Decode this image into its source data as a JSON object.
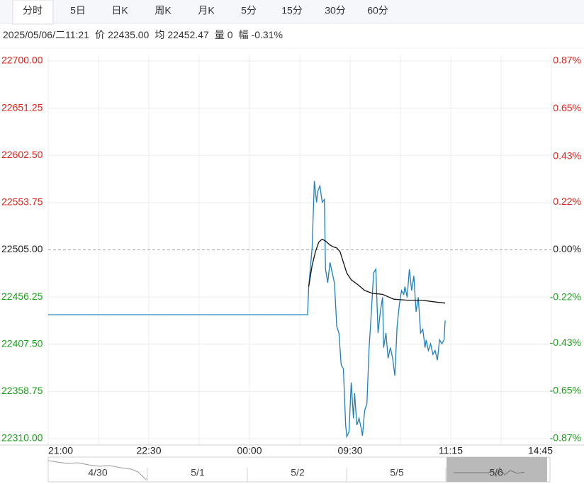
{
  "tabs": [
    "分时",
    "5日",
    "日K",
    "周K",
    "月K",
    "5分",
    "15分",
    "30分",
    "60分"
  ],
  "selected_tab": 0,
  "info": {
    "time": "2025/05/06/二11:21",
    "price_label": "价",
    "price": "22435.00",
    "avg_label": "均",
    "avg": "22452.47",
    "volume_label": "量",
    "volume": "0",
    "change_label": "幅",
    "change": "-0.31%"
  },
  "chart_data": {
    "type": "line",
    "xlim": [
      0,
      450
    ],
    "xticks": [
      {
        "value": 0,
        "label": "21:00"
      },
      {
        "value": 90,
        "label": "22:30"
      },
      {
        "value": 180,
        "label": "00:00"
      },
      {
        "value": 270,
        "label": "09:30"
      },
      {
        "value": 360,
        "label": "11:15"
      },
      {
        "value": 450,
        "label": "14:45"
      }
    ],
    "xgrid": [
      0,
      45,
      90,
      135,
      180,
      225,
      270,
      315,
      360,
      405,
      450
    ],
    "ylim": [
      22310,
      22700
    ],
    "yticks": [
      {
        "value": 22700,
        "label": "22700.00"
      },
      {
        "value": 22651.25,
        "label": "22651.25"
      },
      {
        "value": 22602.5,
        "label": "22602.50"
      },
      {
        "value": 22553.75,
        "label": "22553.75"
      },
      {
        "value": 22505,
        "label": "22505.00"
      },
      {
        "value": 22456.25,
        "label": "22456.25"
      },
      {
        "value": 22407.5,
        "label": "22407.50"
      },
      {
        "value": 22358.75,
        "label": "22358.75"
      },
      {
        "value": 22310,
        "label": "22310.00"
      }
    ],
    "y2lim": [
      -0.87,
      0.87
    ],
    "y2ticks": [
      {
        "value": 0.87,
        "label": "0.87%"
      },
      {
        "value": 0.65,
        "label": "0.65%"
      },
      {
        "value": 0.43,
        "label": "0.43%"
      },
      {
        "value": 0.22,
        "label": "0.22%"
      },
      {
        "value": 0,
        "label": "0.00%"
      },
      {
        "value": -0.22,
        "label": "-0.22%"
      },
      {
        "value": -0.43,
        "label": "-0.43%"
      },
      {
        "value": -0.65,
        "label": "-0.65%"
      },
      {
        "value": -0.87,
        "label": "-0.87%"
      }
    ],
    "ref_line": 22505,
    "up_color": "#e0211b",
    "down_color": "#1a9e1a",
    "flat_color": "#222222",
    "grid": true,
    "series": [
      {
        "name": "价",
        "color": "#1f7fb8",
        "x": [
          0,
          232,
          233,
          236,
          238,
          240,
          241,
          243,
          245,
          247,
          248,
          250,
          252,
          254,
          256,
          258,
          260,
          262,
          264,
          266,
          267,
          269,
          271,
          273,
          274,
          276,
          278,
          280,
          281,
          283,
          285,
          287,
          289,
          291,
          293,
          295,
          297,
          299,
          300,
          302,
          304,
          306,
          308,
          310,
          312,
          314,
          316,
          318,
          319,
          321,
          323,
          325,
          327,
          329,
          331,
          333,
          335,
          337,
          338,
          340,
          342,
          344,
          346,
          348,
          350,
          352,
          354,
          355
        ],
        "values": [
          22438,
          22438,
          22467,
          22507,
          22576,
          22554,
          22565,
          22571,
          22554,
          22557,
          22485,
          22471,
          22492,
          22481,
          22471,
          22426,
          22419,
          22386,
          22382,
          22324,
          22312,
          22317,
          22368,
          22331,
          22357,
          22324,
          22331,
          22320,
          22313,
          22339,
          22346,
          22404,
          22441,
          22481,
          22485,
          22419,
          22441,
          22456,
          22404,
          22419,
          22393,
          22404,
          22393,
          22375,
          22426,
          22448,
          22463,
          22459,
          22467,
          22456,
          22485,
          22463,
          22478,
          22441,
          22456,
          22419,
          22423,
          22404,
          22412,
          22401,
          22408,
          22397,
          22401,
          22391,
          22412,
          22408,
          22412,
          22432
        ]
      },
      {
        "name": "均",
        "color": "#111111",
        "x": [
          233,
          236,
          239,
          242,
          245,
          248,
          252,
          255,
          258,
          261,
          264,
          267,
          271,
          277,
          283,
          290,
          299,
          309,
          321,
          334,
          347,
          355
        ],
        "values": [
          22467,
          22489,
          22503,
          22513,
          22516,
          22514,
          22510,
          22508,
          22507,
          22503,
          22492,
          22481,
          22474,
          22469,
          22463,
          22460,
          22459,
          22454,
          22453,
          22453,
          22451,
          22450
        ]
      }
    ]
  },
  "navigator": {
    "labels": [
      "4/30",
      "5/1",
      "5/2",
      "5/5",
      "5/6"
    ]
  }
}
